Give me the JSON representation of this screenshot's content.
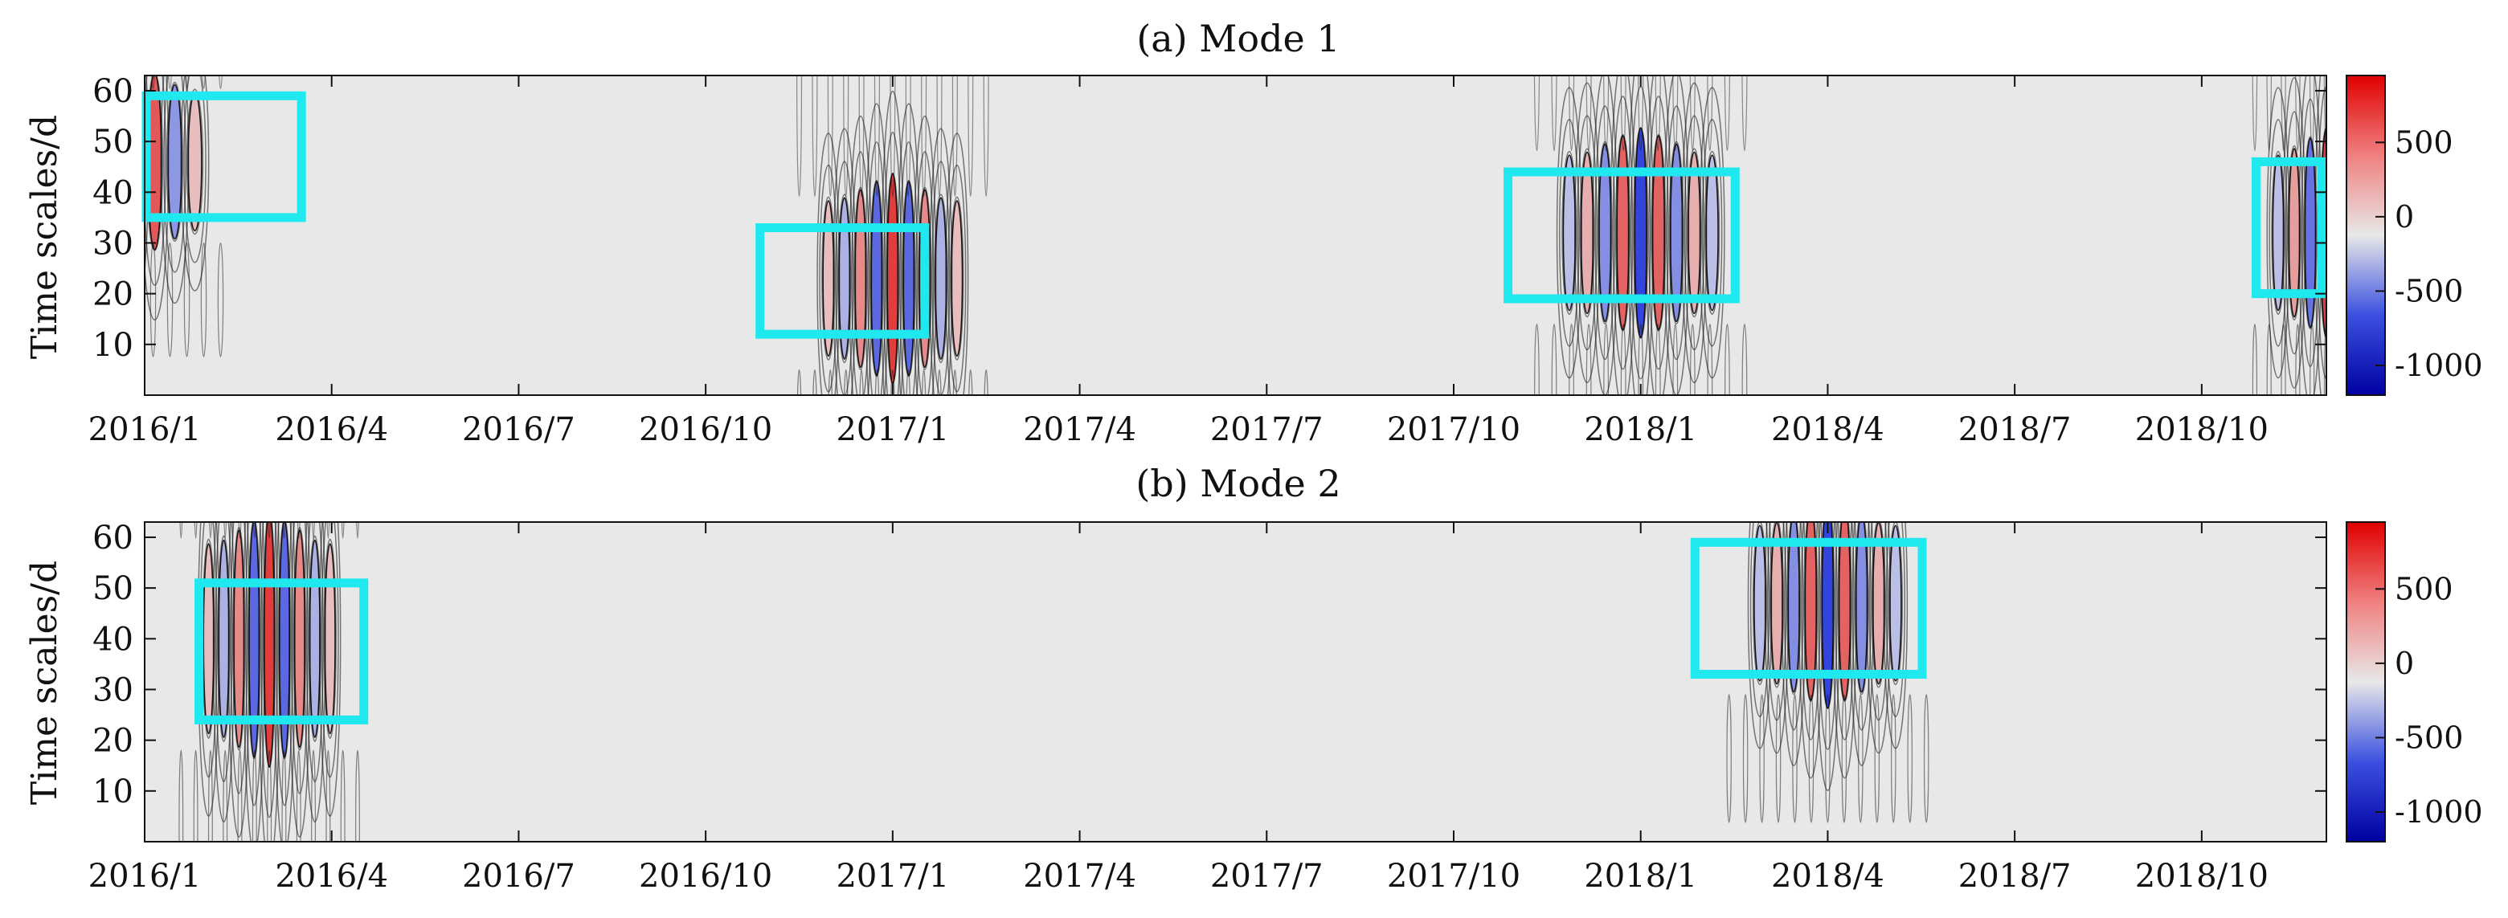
{
  "chart_data": [
    {
      "type": "heatmap",
      "title": "(a) Mode 1",
      "xlabel": "",
      "ylabel": "Time scales/d",
      "x_ticks": [
        "2016/1",
        "2016/4",
        "2016/7",
        "2016/10",
        "2017/1",
        "2017/4",
        "2017/7",
        "2017/10",
        "2018/1",
        "2018/4",
        "2018/7",
        "2018/10"
      ],
      "x_range": [
        "2016/1",
        "2018/12"
      ],
      "y_ticks": [
        10,
        20,
        30,
        40,
        50,
        60
      ],
      "ylim": [
        0,
        63
      ],
      "colorbar": {
        "ticks": [
          500,
          0,
          -500,
          -1000
        ],
        "range": [
          -1200,
          950
        ],
        "colors": [
          "#0000a0",
          "#3b50e0",
          "#e8e8e8",
          "#f08080",
          "#e00000"
        ]
      },
      "highlight_boxes": [
        {
          "x_start": "2016/1",
          "x_end": "2016/3",
          "y_start": 35,
          "y_end": 59
        },
        {
          "x_start": "2016/11",
          "x_end": "2017/1",
          "y_start": 12,
          "y_end": 33
        },
        {
          "x_start": "2017/11",
          "x_end": "2018/2",
          "y_start": 19,
          "y_end": 44
        },
        {
          "x_start": "2018/11",
          "x_end": "2018/12",
          "y_start": 20,
          "y_end": 46
        }
      ],
      "events": [
        {
          "x": "2016/1",
          "y": 46,
          "amplitude": -1000,
          "cycles": 6,
          "width": 75,
          "height": 16
        },
        {
          "x": "2017/1",
          "y": 23,
          "amplitude": 950,
          "cycles": 9,
          "width": 90,
          "height": 18
        },
        {
          "x": "2018/1",
          "y": 32,
          "amplitude": -1100,
          "cycles": 9,
          "width": 100,
          "height": 18
        },
        {
          "x": "2018/12",
          "y": 32,
          "amplitude": -900,
          "cycles": 7,
          "width": 70,
          "height": 18
        }
      ]
    },
    {
      "type": "heatmap",
      "title": "(b) Mode 2",
      "xlabel": "",
      "ylabel": "Time scales/d",
      "x_ticks": [
        "2016/1",
        "2016/4",
        "2016/7",
        "2016/10",
        "2017/1",
        "2017/4",
        "2017/7",
        "2017/10",
        "2018/1",
        "2018/4",
        "2018/7",
        "2018/10"
      ],
      "x_range": [
        "2016/1",
        "2018/12"
      ],
      "y_ticks": [
        10,
        20,
        30,
        40,
        50,
        60
      ],
      "ylim": [
        0,
        63
      ],
      "colorbar": {
        "ticks": [
          500,
          0,
          -500,
          -1000
        ],
        "range": [
          -1200,
          950
        ],
        "colors": [
          "#0000a0",
          "#3b50e0",
          "#e8e8e8",
          "#f08080",
          "#e00000"
        ]
      },
      "highlight_boxes": [
        {
          "x_start": "2016/2",
          "x_end": "2016/4",
          "y_start": 24,
          "y_end": 51
        },
        {
          "x_start": "2018/2",
          "x_end": "2018/5",
          "y_start": 33,
          "y_end": 59
        }
      ],
      "events": [
        {
          "x": "2016/3",
          "y": 40,
          "amplitude": 950,
          "cycles": 9,
          "width": 85,
          "height": 22
        },
        {
          "x": "2018/4",
          "y": 47,
          "amplitude": -1000,
          "cycles": 9,
          "width": 95,
          "height": 18
        }
      ]
    }
  ]
}
